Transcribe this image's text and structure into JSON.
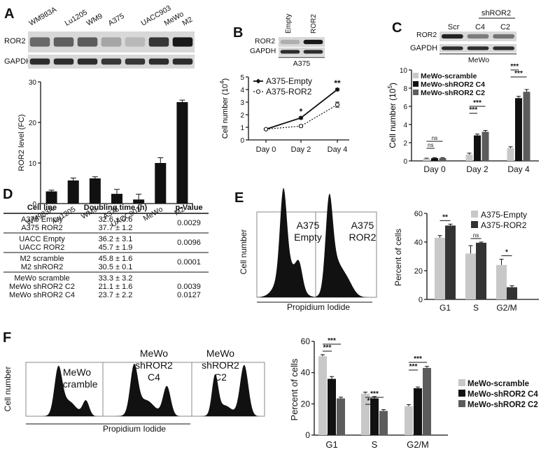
{
  "chart_data": [
    {
      "panel": "A",
      "type": "bar",
      "blot_labels": [
        "ROR2",
        "GAPDH"
      ],
      "lane_labels": [
        "WM983A",
        "Lu1205",
        "WM9",
        "A375",
        "UACC903",
        "MeWo",
        "M2"
      ],
      "categories": [
        "WM983A",
        "Lu1205",
        "WM9",
        "A375",
        "UACC903",
        "MeWo",
        "M2"
      ],
      "values": [
        3,
        5.7,
        6.2,
        2.4,
        1,
        10,
        25
      ],
      "errors": [
        0.3,
        0.6,
        0.4,
        1.1,
        1.3,
        1.3,
        0.5
      ],
      "ylabel": "ROR2 level (FC)",
      "yticks": [
        0,
        10,
        20,
        30
      ],
      "ylim": [
        0,
        30
      ]
    },
    {
      "panel": "B",
      "type": "line",
      "blot_lane_labels": [
        "Empty",
        "ROR2"
      ],
      "blot_labels": [
        "ROR2",
        "GAPDH"
      ],
      "cell_line": "A375",
      "categories": [
        "Day 0",
        "Day 2",
        "Day 4"
      ],
      "series": [
        {
          "name": "A375-Empty",
          "values": [
            0.85,
            1.75,
            4.0
          ],
          "errors": [
            0.05,
            0.1,
            0.1
          ]
        },
        {
          "name": "A375-ROR2",
          "values": [
            0.85,
            1.1,
            2.8
          ],
          "errors": [
            0.05,
            0.08,
            0.2
          ]
        }
      ],
      "significance": [
        "",
        "*",
        "**"
      ],
      "ylabel_main": "Cell number (10",
      "ylabel_exp": "4",
      "ylabel_close": ")",
      "yticks": [
        0,
        1,
        2,
        3,
        4,
        5
      ],
      "ylim": [
        0,
        5
      ]
    },
    {
      "panel": "C",
      "type": "bar",
      "blot_header": "shROR2",
      "blot_lane_labels": [
        "Scr",
        "C4",
        "C2"
      ],
      "blot_labels": [
        "ROR2",
        "GAPDH"
      ],
      "cell_line": "MeWo",
      "categories": [
        "Day 0",
        "Day 2",
        "Day 4"
      ],
      "series": [
        {
          "name": "MeWo-scramble",
          "color": "#c8c8c8",
          "values": [
            0.25,
            0.7,
            1.4
          ],
          "errors": [
            0.05,
            0.15,
            0.15
          ]
        },
        {
          "name": "MeWo-shROR2 C4",
          "color": "#111111",
          "values": [
            0.3,
            2.8,
            6.9
          ],
          "errors": [
            0.05,
            0.15,
            0.2
          ]
        },
        {
          "name": "MeWo-shROR2 C2",
          "color": "#5c5c5c",
          "values": [
            0.3,
            3.2,
            7.6
          ],
          "errors": [
            0.05,
            0.15,
            0.25
          ]
        }
      ],
      "significance": [
        {
          "group": 0,
          "labels": [
            "ns",
            "ns"
          ]
        },
        {
          "group": 1,
          "labels": [
            "***",
            "***"
          ]
        },
        {
          "group": 2,
          "labels": [
            "***",
            "***"
          ]
        }
      ],
      "ylabel_main": "Cell number (10",
      "ylabel_exp": "5",
      "ylabel_close": ")",
      "yticks": [
        0,
        2,
        4,
        6,
        8,
        10
      ],
      "ylim": [
        0,
        10
      ]
    },
    {
      "panel": "D",
      "type": "table",
      "columns": [
        "Cell line",
        "Doubling time (h)",
        "p-Value"
      ],
      "groups": [
        {
          "rows": [
            [
              "A375 Empty",
              "32.6 ± 0.6"
            ],
            [
              "A375 ROR2",
              "37.7 ± 1.2"
            ]
          ],
          "p": [
            "0.0029"
          ]
        },
        {
          "rows": [
            [
              "UACC Empty",
              "36.2 ± 3.1"
            ],
            [
              "UACC ROR2",
              "45.7 ± 1.9"
            ]
          ],
          "p": [
            "0.0096"
          ]
        },
        {
          "rows": [
            [
              "M2 scramble",
              "45.8 ± 1.6"
            ],
            [
              "M2 shROR2",
              "30.5 ± 0.1"
            ]
          ],
          "p": [
            "0.0001"
          ]
        },
        {
          "rows": [
            [
              "MeWo scramble",
              "33.3 ± 3.2"
            ],
            [
              "MeWo shROR2 C2",
              "21.1 ± 1.6"
            ],
            [
              "MeWo shROR2 C4",
              "23.7 ± 2.2"
            ]
          ],
          "p": [
            "",
            "0.0039",
            "0.0127"
          ]
        }
      ]
    },
    {
      "panel": "E",
      "type": "bar",
      "histogram_labels": [
        [
          "A375",
          "Empty"
        ],
        [
          "A375",
          "ROR2"
        ]
      ],
      "histogram_xlabel": "Propidium Iodide",
      "histogram_ylabel": "Cell number",
      "categories": [
        "G1",
        "S",
        "G2/M"
      ],
      "series": [
        {
          "name": "A375-Empty",
          "color": "#c8c8c8",
          "values": [
            43,
            32,
            24
          ],
          "errors": [
            1.5,
            5.5,
            4
          ]
        },
        {
          "name": "A375-ROR2",
          "color": "#333333",
          "values": [
            51.5,
            39.5,
            8.5
          ],
          "errors": [
            1,
            0.5,
            1
          ]
        }
      ],
      "significance": [
        "**",
        "ns",
        "*"
      ],
      "ylabel": "Percent of cells",
      "yticks": [
        0,
        20,
        40,
        60
      ],
      "ylim": [
        0,
        60
      ]
    },
    {
      "panel": "F",
      "type": "bar",
      "histogram_labels": [
        [
          "MeWo",
          "Scramble"
        ],
        [
          "MeWo",
          "shROR2",
          "C4"
        ],
        [
          "MeWo",
          "shROR2",
          "C2"
        ]
      ],
      "histogram_xlabel": "Propidium Iodide",
      "histogram_ylabel": "Cell number",
      "categories": [
        "G1",
        "S",
        "G2/M"
      ],
      "series": [
        {
          "name": "MeWo-scramble",
          "color": "#c8c8c8",
          "values": [
            50.5,
            26.5,
            18.5
          ],
          "errors": [
            1,
            1,
            1
          ]
        },
        {
          "name": "MeWo-shROR2 C4",
          "color": "#111111",
          "values": [
            36,
            23.5,
            30
          ],
          "errors": [
            1.5,
            1.2,
            0.8
          ]
        },
        {
          "name": "MeWo-shROR2 C2",
          "color": "#5c5c5c",
          "values": [
            23.5,
            15.5,
            43
          ],
          "errors": [
            0.8,
            0.8,
            1
          ]
        }
      ],
      "significance": [
        {
          "group": 0,
          "labels": [
            "***",
            "***"
          ]
        },
        {
          "group": 1,
          "labels": [
            "**",
            "***"
          ]
        },
        {
          "group": 2,
          "labels": [
            "***",
            "***"
          ]
        }
      ],
      "ylabel": "Percent of cells",
      "yticks": [
        0,
        20,
        40,
        60
      ],
      "ylim": [
        0,
        60
      ]
    }
  ],
  "panel_letters": [
    "A",
    "B",
    "C",
    "D",
    "E",
    "F"
  ]
}
